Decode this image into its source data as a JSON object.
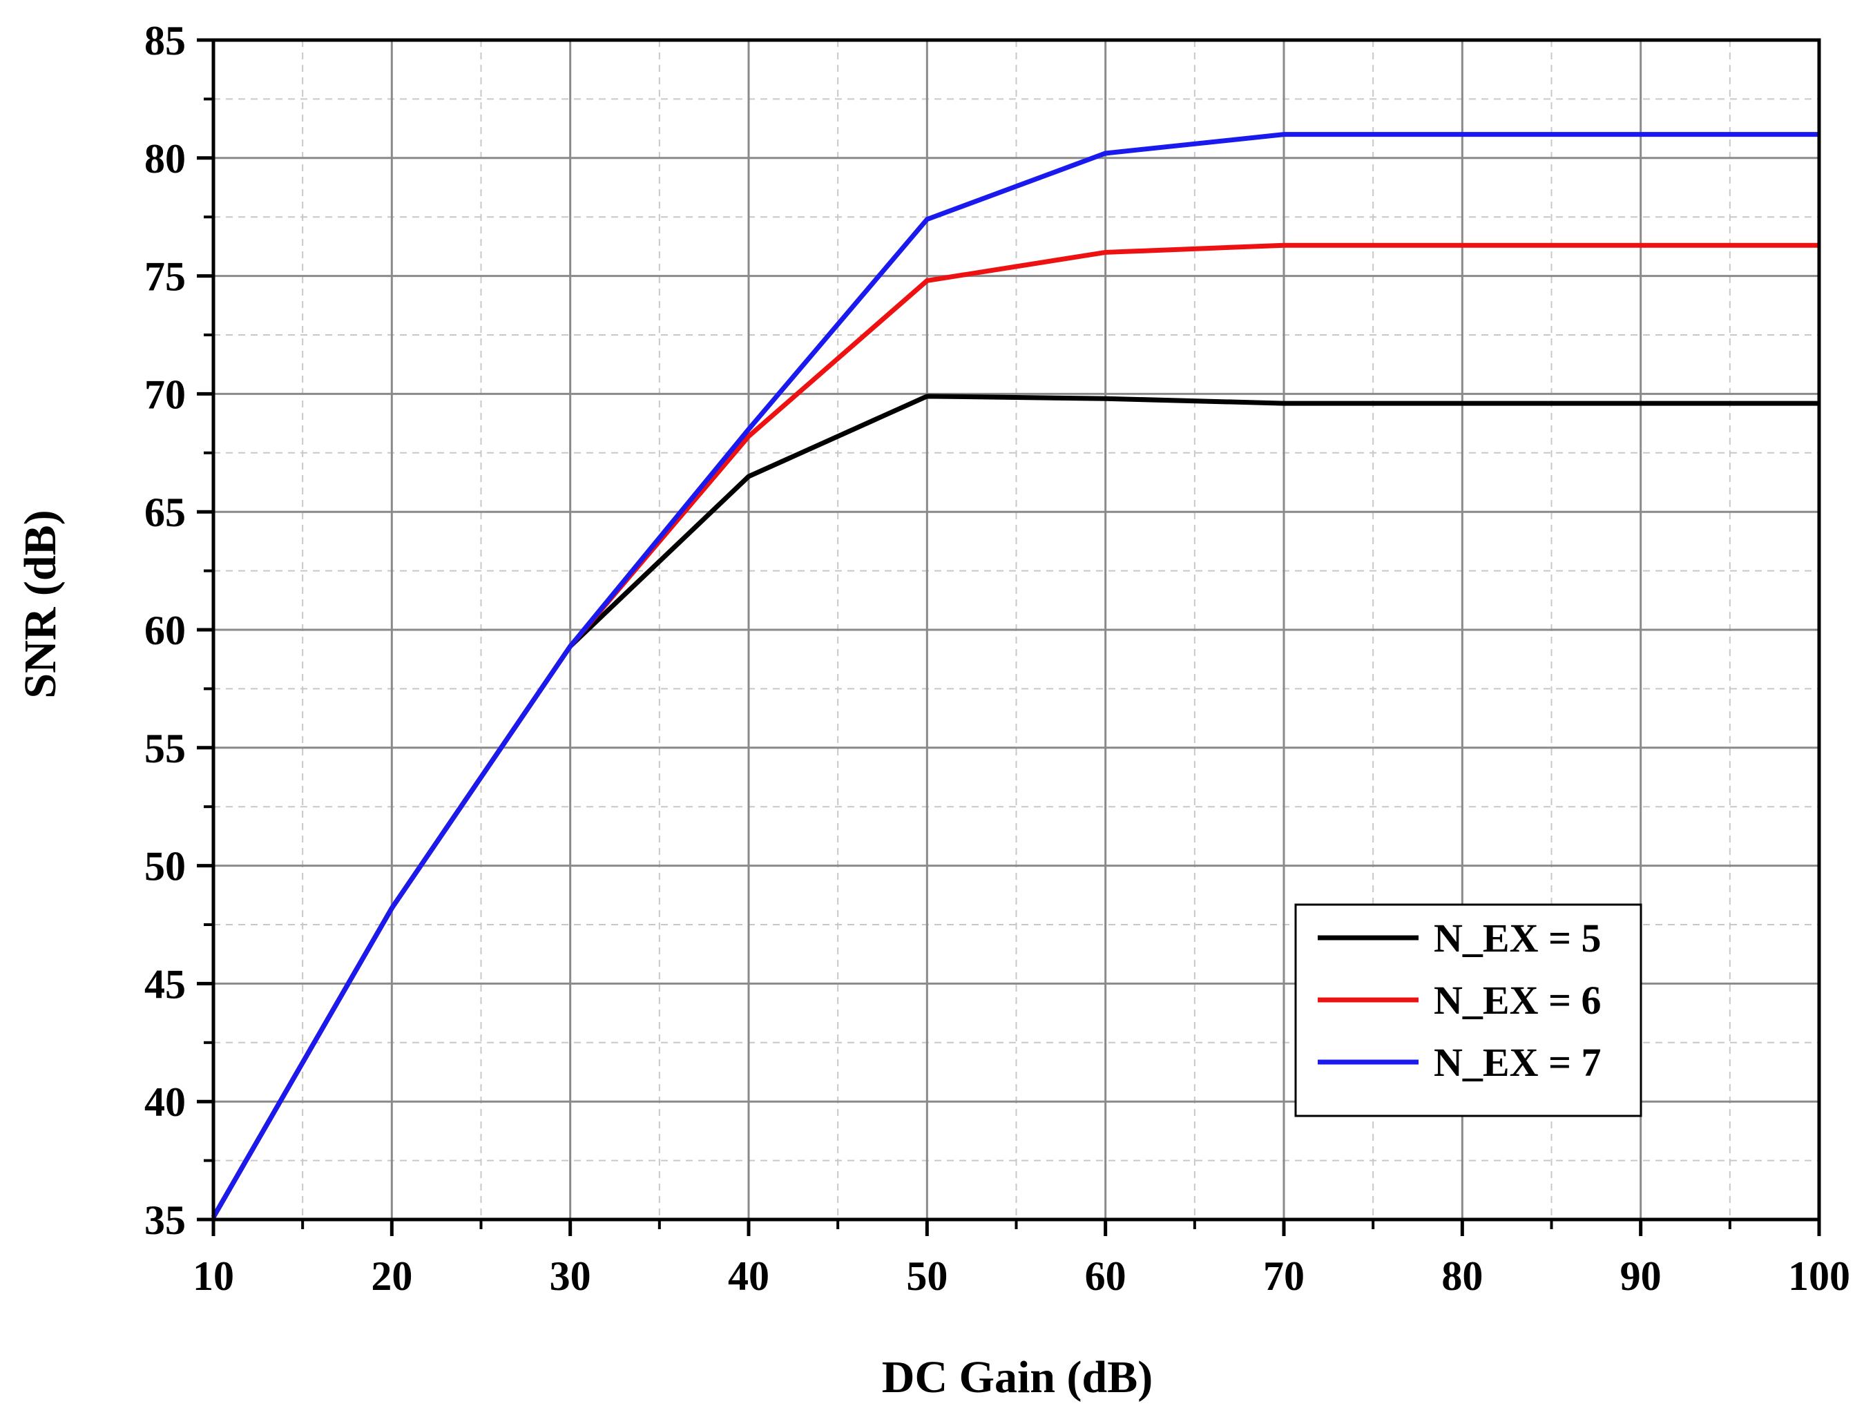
{
  "chart_data": {
    "type": "line",
    "title": "",
    "xlabel": "DC Gain (dB)",
    "ylabel": "SNR (dB)",
    "xlim": [
      10,
      100
    ],
    "ylim": [
      35,
      85
    ],
    "x_ticks": [
      10,
      20,
      30,
      40,
      50,
      60,
      70,
      80,
      90,
      100
    ],
    "y_ticks": [
      35,
      40,
      45,
      50,
      55,
      60,
      65,
      70,
      75,
      80,
      85
    ],
    "grid": true,
    "legend_position": "lower-right",
    "x": [
      10,
      20,
      30,
      40,
      50,
      60,
      70,
      80,
      90,
      100
    ],
    "series": [
      {
        "name": "N_EX = 5",
        "color": "#000000",
        "values": [
          35.1,
          48.2,
          59.3,
          66.5,
          69.9,
          69.8,
          69.6,
          69.6,
          69.6,
          69.6
        ]
      },
      {
        "name": "N_EX = 6",
        "color": "#ee1111",
        "values": [
          35.1,
          48.2,
          59.3,
          68.2,
          74.8,
          76.0,
          76.3,
          76.3,
          76.3,
          76.3
        ]
      },
      {
        "name": "N_EX = 7",
        "color": "#1a1aee",
        "values": [
          35.1,
          48.2,
          59.3,
          68.5,
          77.4,
          80.2,
          81.0,
          81.0,
          81.0,
          81.0
        ]
      }
    ]
  }
}
